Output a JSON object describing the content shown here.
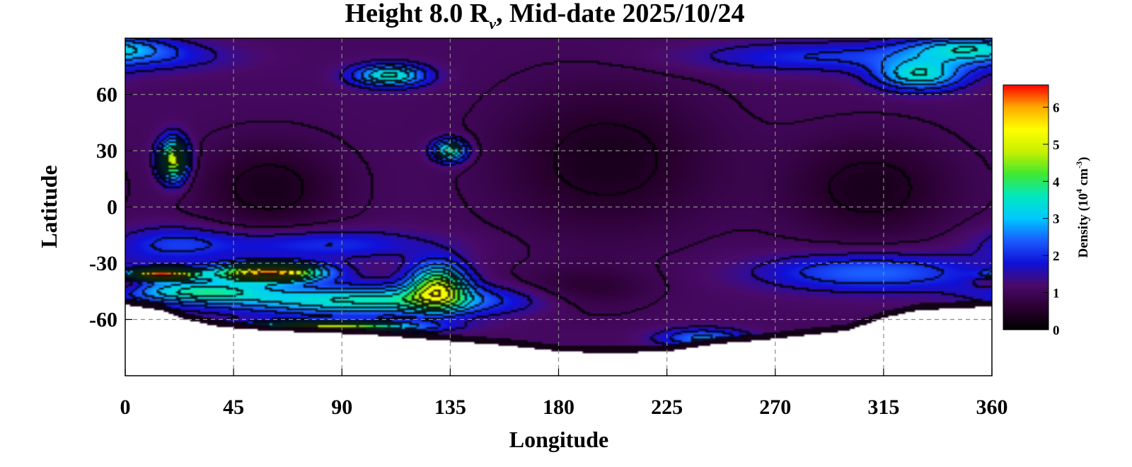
{
  "chart_data": {
    "type": "heatmap",
    "title": {
      "prefix": "Height 8.0 R",
      "subscript": "ν",
      "suffix": ", Mid-date 2025/10/24"
    },
    "xlabel": "Longitude",
    "ylabel": "Latitude",
    "xlim": [
      0,
      360
    ],
    "ylim": [
      -90,
      90
    ],
    "xticks": [
      0,
      45,
      90,
      135,
      180,
      225,
      270,
      315,
      360
    ],
    "yticks": [
      60,
      30,
      0,
      -30,
      -60
    ],
    "grid": true,
    "colorbar": {
      "label_prefix": "Density (10",
      "label_exp1": "4",
      "label_mid": " cm",
      "label_exp2": "-3",
      "label_suffix": ")",
      "range": [
        0,
        6.6
      ],
      "ticks": [
        0,
        1,
        2,
        3,
        4,
        5,
        6
      ],
      "colors": [
        "#000000",
        "#2a0030",
        "#4a0a6a",
        "#1010d8",
        "#1a5cff",
        "#00c8ff",
        "#00e8c0",
        "#40e830",
        "#c8f000",
        "#ffff00",
        "#ffaa00",
        "#ff0000"
      ]
    },
    "background_value": 1.1,
    "data_boundary_south_edge": [
      [
        0,
        -52
      ],
      [
        15,
        -55
      ],
      [
        25,
        -60
      ],
      [
        40,
        -64
      ],
      [
        60,
        -66
      ],
      [
        80,
        -67
      ],
      [
        100,
        -68
      ],
      [
        120,
        -70
      ],
      [
        140,
        -72
      ],
      [
        160,
        -74
      ],
      [
        180,
        -77
      ],
      [
        200,
        -78
      ],
      [
        225,
        -77
      ],
      [
        245,
        -73
      ],
      [
        265,
        -71
      ],
      [
        285,
        -68
      ],
      [
        300,
        -66
      ],
      [
        315,
        -59
      ],
      [
        330,
        -55
      ],
      [
        345,
        -54
      ],
      [
        360,
        -53
      ]
    ],
    "features": [
      {
        "lon": 20,
        "lat": 25,
        "sigma_lon": 6,
        "sigma_lat": 11,
        "value": 3.9
      },
      {
        "lon": 110,
        "lat": 70,
        "sigma_lon": 15,
        "sigma_lat": 6,
        "value": 2.5
      },
      {
        "lon": 135,
        "lat": 30,
        "sigma_lon": 7,
        "sigma_lat": 6,
        "value": 2.7
      },
      {
        "lon": 330,
        "lat": 70,
        "sigma_lon": 18,
        "sigma_lat": 8,
        "value": 2.2
      },
      {
        "lon": 350,
        "lat": 85,
        "sigma_lon": 25,
        "sigma_lat": 6,
        "value": 1.6
      },
      {
        "lon": 0,
        "lat": 80,
        "sigma_lon": 40,
        "sigma_lat": 8,
        "value": 0.9
      },
      {
        "lon": 290,
        "lat": 80,
        "sigma_lon": 55,
        "sigma_lat": 8,
        "value": 0.9
      },
      {
        "lon": 60,
        "lat": 10,
        "sigma_lon": 30,
        "sigma_lat": 25,
        "value": -0.75
      },
      {
        "lon": 200,
        "lat": 25,
        "sigma_lon": 45,
        "sigma_lat": 40,
        "value": -0.75
      },
      {
        "lon": 310,
        "lat": 10,
        "sigma_lon": 35,
        "sigma_lat": 28,
        "value": -0.75
      },
      {
        "lon": 190,
        "lat": -45,
        "sigma_lon": 28,
        "sigma_lat": 12,
        "value": -0.55
      },
      {
        "lon": 80,
        "lat": -20,
        "sigma_lon": 45,
        "sigma_lat": 8,
        "value": 1.0
      },
      {
        "lon": 20,
        "lat": -20,
        "sigma_lon": 25,
        "sigma_lat": 10,
        "value": 0.9
      },
      {
        "lon": 310,
        "lat": -35,
        "sigma_lon": 45,
        "sigma_lat": 10,
        "value": 1.4
      },
      {
        "lon": 100,
        "lat": -50,
        "sigma_lon": 60,
        "sigma_lat": 8,
        "value": 2.5
      },
      {
        "lon": 130,
        "lat": -42,
        "sigma_lon": 12,
        "sigma_lat": 12,
        "value": 3.3
      },
      {
        "lon": 30,
        "lat": -45,
        "sigma_lon": 30,
        "sigma_lat": 6,
        "value": 2.2
      },
      {
        "lon": 60,
        "lat": -35,
        "sigma_lon": 22,
        "sigma_lat": 5,
        "value": 5.0
      },
      {
        "lon": 15,
        "lat": -36,
        "sigma_lon": 14,
        "sigma_lat": 3,
        "value": 5.0
      },
      {
        "lon": 85,
        "lat": -64,
        "sigma_lon": 35,
        "sigma_lat": 3,
        "value": 3.8
      },
      {
        "lon": 240,
        "lat": -70,
        "sigma_lon": 18,
        "sigma_lat": 5,
        "value": 1.5
      },
      {
        "lon": 360,
        "lat": -40,
        "sigma_lon": 8,
        "sigma_lat": 6,
        "value": -0.8
      }
    ]
  }
}
